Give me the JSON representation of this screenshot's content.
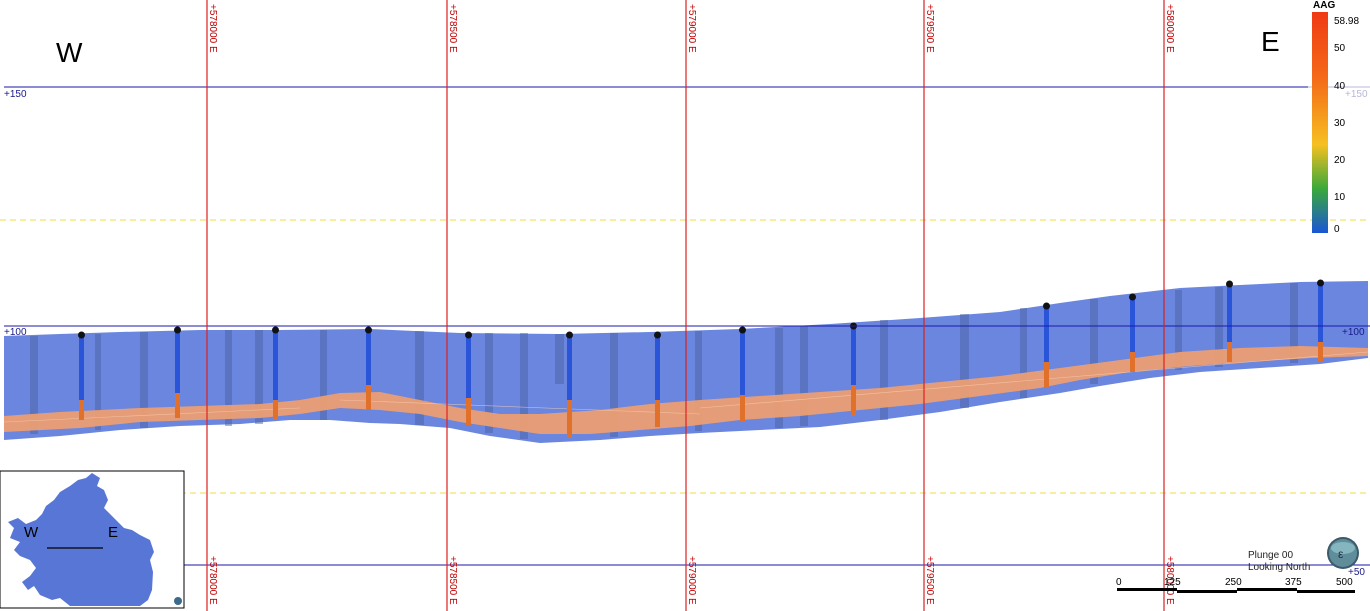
{
  "compass": {
    "west": "W",
    "east": "E"
  },
  "eastings": [
    "+578000 E",
    "+578500 E",
    "+579000 E",
    "+579500 E",
    "+580000 E"
  ],
  "elevations": {
    "e150": "+150",
    "e150_right": "+150",
    "e100": "+100",
    "e100_right": "+100",
    "e50_right": "+50"
  },
  "legend": {
    "title": "AAG",
    "ticks": [
      "58.98",
      "50",
      "40",
      "30",
      "20",
      "10",
      "0"
    ],
    "colors": {
      "high": "#f03a14",
      "mid": "#f6c020",
      "low_mid": "#3aa83a",
      "low": "#1a55d6"
    }
  },
  "view": {
    "plunge": "Plunge 00",
    "direction": "Looking North"
  },
  "scale_bar": {
    "labels": [
      "0",
      "125",
      "250",
      "375",
      "500"
    ]
  },
  "inset": {
    "west": "W",
    "east": "E"
  },
  "colors": {
    "model_blue": "#6a86df",
    "grade_orange": "#f0a070",
    "grid_red": "#e02020",
    "elev_line": "#1a1aaa",
    "guide_yellow": "#f5e26b"
  }
}
